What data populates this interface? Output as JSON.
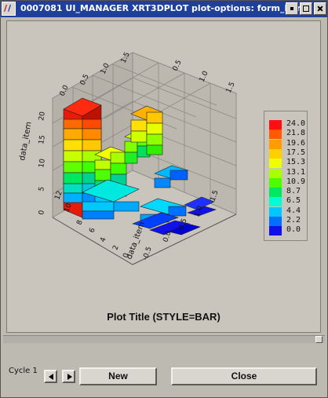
{
  "window": {
    "title": "0007081 UI_MANAGER XRT3DPLOT plot-options: form_bar"
  },
  "window_buttons": [
    "minimize-icon",
    "maximize-icon",
    "close-icon"
  ],
  "plot": {
    "title": "Plot Title (STYLE=BAR)",
    "axis_x_label": "data_item",
    "axis_y_label": "data_item",
    "axis_z_label": "data_item",
    "z_ticks": [
      "0",
      "5",
      "10",
      "15",
      "20"
    ],
    "front_ticks": [
      "12",
      "10",
      "8",
      "6",
      "4",
      "2",
      "0",
      "-0.5"
    ],
    "right_ticks": [
      "1.5",
      "1.0",
      "0.5",
      "0.0",
      "-0.5"
    ],
    "top_ticks": [
      "0.0",
      "0.5",
      "1.0",
      "1.5",
      "0.5",
      "1.0",
      "1.5"
    ]
  },
  "legend": {
    "labels": [
      "24.0",
      "21.8",
      "19.6",
      "17.5",
      "15.3",
      "13.1",
      "10.9",
      "8.7",
      "6.5",
      "4.4",
      "2.2",
      "0.0"
    ],
    "colors": [
      "#ff1010",
      "#ff5a00",
      "#ff9c00",
      "#ffd000",
      "#f0ff00",
      "#a8ff00",
      "#4cff00",
      "#00e860",
      "#00ffd0",
      "#00c8ff",
      "#0070ff",
      "#1010e8"
    ]
  },
  "footer": {
    "cycle_label": "Cycle 1",
    "new_label": "New",
    "close_label": "Close"
  }
}
